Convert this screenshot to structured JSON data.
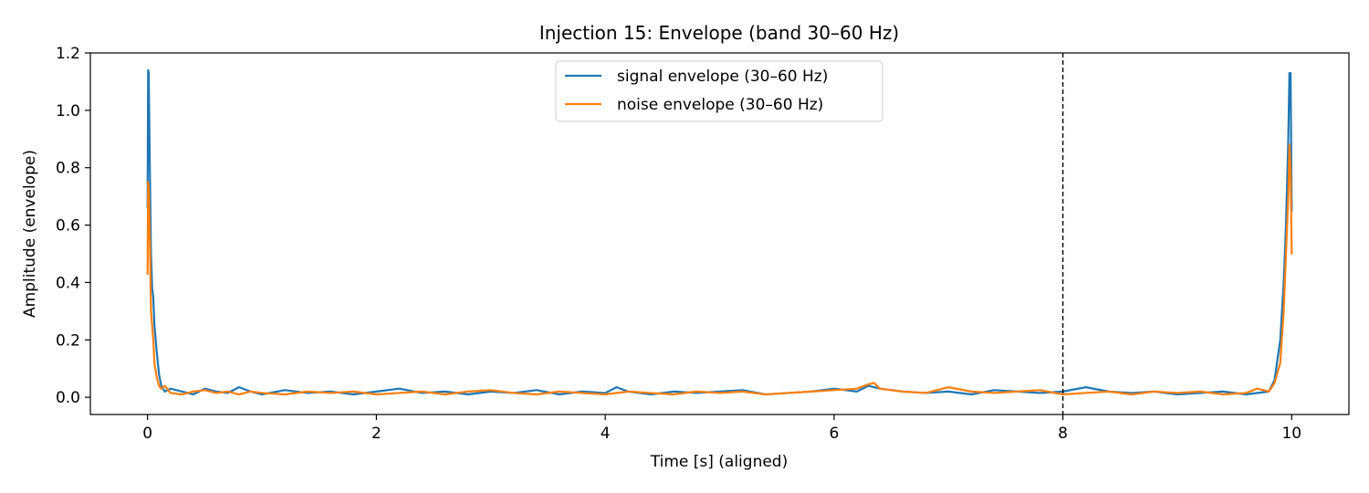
{
  "chart_data": {
    "type": "line",
    "title": "Injection 15: Envelope (band 30–60 Hz)",
    "xlabel": "Time [s] (aligned)",
    "ylabel": "Amplitude (envelope)",
    "xlim": [
      -0.5,
      10.5
    ],
    "ylim": [
      -0.06,
      1.2
    ],
    "xticks": [
      0,
      2,
      4,
      6,
      8,
      10
    ],
    "xtick_labels": [
      "0",
      "2",
      "4",
      "6",
      "8",
      "10"
    ],
    "yticks": [
      0.0,
      0.2,
      0.4,
      0.6,
      0.8,
      1.0,
      1.2
    ],
    "ytick_labels": [
      "0.0",
      "0.2",
      "0.4",
      "0.6",
      "0.8",
      "1.0",
      "1.2"
    ],
    "grid": false,
    "legend": {
      "placement": "upper-center"
    },
    "vline": {
      "x": 8,
      "style": "dashed",
      "color": "#000000"
    },
    "series": [
      {
        "name": "signal envelope (30–60 Hz)",
        "color": "#1f77b4",
        "x": [
          0,
          0.005,
          0.01,
          0.02,
          0.03,
          0.04,
          0.05,
          0.06,
          0.08,
          0.1,
          0.12,
          0.15,
          0.2,
          0.3,
          0.4,
          0.5,
          0.6,
          0.7,
          0.8,
          0.9,
          1.0,
          1.2,
          1.4,
          1.6,
          1.8,
          2.0,
          2.2,
          2.4,
          2.6,
          2.8,
          3.0,
          3.2,
          3.4,
          3.6,
          3.8,
          4.0,
          4.1,
          4.2,
          4.4,
          4.6,
          4.8,
          5.0,
          5.2,
          5.4,
          5.6,
          5.8,
          6.0,
          6.2,
          6.3,
          6.4,
          6.6,
          6.8,
          7.0,
          7.2,
          7.4,
          7.6,
          7.8,
          8.0,
          8.2,
          8.4,
          8.6,
          8.8,
          9.0,
          9.2,
          9.4,
          9.6,
          9.8,
          9.85,
          9.9,
          9.93,
          9.95,
          9.97,
          9.98,
          9.99,
          10.0
        ],
        "y": [
          0.66,
          1.14,
          1.13,
          0.8,
          0.5,
          0.38,
          0.35,
          0.25,
          0.16,
          0.08,
          0.04,
          0.02,
          0.03,
          0.02,
          0.01,
          0.03,
          0.02,
          0.015,
          0.035,
          0.02,
          0.01,
          0.025,
          0.015,
          0.02,
          0.01,
          0.02,
          0.03,
          0.015,
          0.02,
          0.01,
          0.02,
          0.015,
          0.025,
          0.01,
          0.02,
          0.015,
          0.035,
          0.02,
          0.01,
          0.02,
          0.015,
          0.02,
          0.025,
          0.01,
          0.015,
          0.02,
          0.03,
          0.02,
          0.04,
          0.03,
          0.02,
          0.015,
          0.02,
          0.01,
          0.025,
          0.02,
          0.015,
          0.02,
          0.035,
          0.02,
          0.015,
          0.02,
          0.01,
          0.015,
          0.02,
          0.01,
          0.02,
          0.06,
          0.2,
          0.4,
          0.6,
          0.9,
          1.13,
          1.13,
          0.65
        ]
      },
      {
        "name": "noise envelope (30–60 Hz)",
        "color": "#ff7f0e",
        "x": [
          0,
          0.005,
          0.01,
          0.02,
          0.03,
          0.04,
          0.05,
          0.06,
          0.08,
          0.1,
          0.12,
          0.15,
          0.2,
          0.3,
          0.4,
          0.5,
          0.6,
          0.7,
          0.8,
          0.9,
          1.0,
          1.2,
          1.4,
          1.6,
          1.8,
          2.0,
          2.2,
          2.4,
          2.6,
          2.8,
          3.0,
          3.2,
          3.4,
          3.6,
          3.8,
          4.0,
          4.2,
          4.4,
          4.6,
          4.8,
          5.0,
          5.2,
          5.4,
          5.6,
          5.8,
          6.0,
          6.2,
          6.3,
          6.35,
          6.4,
          6.6,
          6.8,
          7.0,
          7.2,
          7.4,
          7.6,
          7.8,
          8.0,
          8.2,
          8.4,
          8.6,
          8.8,
          9.0,
          9.2,
          9.4,
          9.6,
          9.7,
          9.8,
          9.85,
          9.9,
          9.93,
          9.95,
          9.97,
          9.98,
          9.99,
          10.0
        ],
        "y": [
          0.43,
          0.75,
          0.73,
          0.55,
          0.3,
          0.25,
          0.2,
          0.12,
          0.07,
          0.04,
          0.03,
          0.04,
          0.015,
          0.01,
          0.02,
          0.025,
          0.015,
          0.02,
          0.01,
          0.02,
          0.015,
          0.01,
          0.02,
          0.015,
          0.02,
          0.01,
          0.015,
          0.02,
          0.01,
          0.02,
          0.025,
          0.015,
          0.01,
          0.02,
          0.015,
          0.01,
          0.02,
          0.015,
          0.01,
          0.02,
          0.015,
          0.02,
          0.01,
          0.015,
          0.02,
          0.025,
          0.03,
          0.045,
          0.05,
          0.03,
          0.02,
          0.015,
          0.035,
          0.02,
          0.015,
          0.02,
          0.025,
          0.01,
          0.015,
          0.02,
          0.01,
          0.02,
          0.015,
          0.02,
          0.01,
          0.015,
          0.03,
          0.02,
          0.05,
          0.12,
          0.3,
          0.5,
          0.7,
          0.88,
          0.8,
          0.5
        ]
      }
    ]
  }
}
